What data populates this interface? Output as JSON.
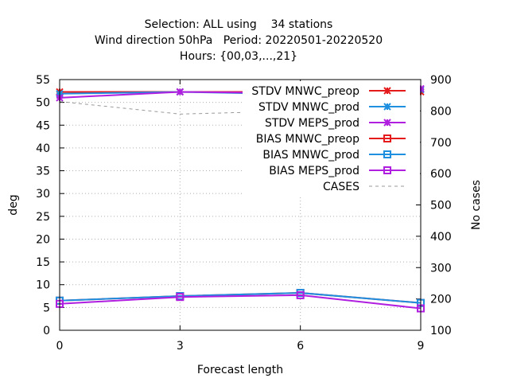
{
  "chart_data": {
    "type": "line",
    "title_lines": [
      "Selection: ALL using    34 stations",
      "Wind direction 50hPa   Period: 20220501-20220520",
      "Hours: {00,03,...,21}"
    ],
    "xlabel": "Forecast length",
    "ylabel": "deg",
    "y2label": "No cases",
    "x": [
      0,
      3,
      6,
      9
    ],
    "xlim": [
      0,
      9
    ],
    "xticks": [
      "0",
      "3",
      "6",
      "9"
    ],
    "ylim": [
      0,
      55
    ],
    "yticks": [
      "0",
      "5",
      "10",
      "15",
      "20",
      "25",
      "30",
      "35",
      "40",
      "45",
      "50",
      "55"
    ],
    "y2lim": [
      100,
      900
    ],
    "y2ticks": [
      "100",
      "200",
      "300",
      "400",
      "500",
      "600",
      "700",
      "800",
      "900"
    ],
    "grid": true,
    "legend_position": "top-right",
    "series": [
      {
        "name": "STDV MNWC_preop",
        "axis": "y1",
        "color": "#e41a1c",
        "marker": "star",
        "dash": "",
        "values": [
          52.3,
          52.3,
          52.3,
          52.3
        ]
      },
      {
        "name": "STDV MNWC_prod",
        "axis": "y1",
        "color": "#1f8fe0",
        "marker": "star",
        "dash": "",
        "values": [
          51.9,
          52.3,
          51.8,
          52.8
        ]
      },
      {
        "name": "STDV MEPS_prod",
        "axis": "y1",
        "color": "#b01ee0",
        "marker": "star",
        "dash": "",
        "values": [
          51.0,
          52.3,
          52.0,
          53.0
        ]
      },
      {
        "name": "BIAS MNWC_preop",
        "axis": "y1",
        "color": "#e41a1c",
        "marker": "square",
        "dash": "",
        "values": [
          6.5,
          7.5,
          8.2,
          6.0
        ]
      },
      {
        "name": "BIAS MNWC_prod",
        "axis": "y1",
        "color": "#1f8fe0",
        "marker": "square",
        "dash": "",
        "values": [
          6.5,
          7.5,
          8.2,
          6.0
        ]
      },
      {
        "name": "BIAS MEPS_prod",
        "axis": "y1",
        "color": "#b01ee0",
        "marker": "square",
        "dash": "",
        "values": [
          5.8,
          7.3,
          7.7,
          4.8
        ]
      },
      {
        "name": "CASES",
        "axis": "y2",
        "color": "#999999",
        "marker": "none",
        "dash": "4,4",
        "values": [
          830,
          790,
          800,
          830
        ]
      }
    ]
  }
}
